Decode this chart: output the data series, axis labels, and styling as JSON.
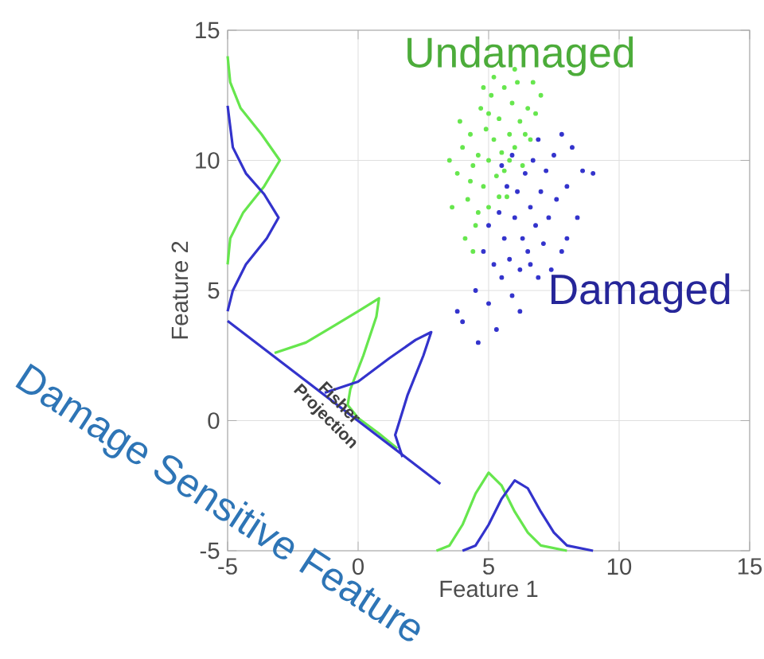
{
  "chart_data": {
    "type": "scatter",
    "xlabel": "Feature 1",
    "ylabel": "Feature 2",
    "xlim": [
      -5,
      15
    ],
    "ylim": [
      -5,
      15
    ],
    "xticks": [
      -5,
      0,
      5,
      10,
      15
    ],
    "yticks": [
      -5,
      0,
      5,
      10,
      15
    ],
    "grid": true,
    "annotations": [
      {
        "text": "Fisher Projection",
        "x": -1,
        "y": 0.4
      },
      "Damage Sensitive Feature"
    ],
    "series": [
      {
        "name": "Undamaged",
        "color": "#66e64d",
        "x": [
          3.8,
          4.0,
          4.2,
          4.3,
          4.4,
          4.5,
          4.6,
          4.7,
          4.8,
          4.9,
          5.0,
          5.0,
          5.1,
          5.2,
          5.3,
          5.4,
          5.5,
          5.6,
          5.7,
          5.8,
          5.9,
          6.0,
          6.1,
          6.2,
          6.3,
          6.5,
          6.6,
          6.8,
          7.0,
          4.1,
          3.6,
          4.4,
          5.2,
          4.6,
          5.4,
          6.0,
          3.9,
          4.8,
          6.4,
          5.6,
          3.5,
          4.3,
          5.0,
          5.8,
          6.7
        ],
        "values": [
          9.5,
          10.5,
          8.5,
          11.0,
          9.8,
          7.5,
          10.2,
          12.0,
          9.0,
          11.2,
          10.0,
          8.2,
          12.5,
          10.8,
          9.4,
          11.6,
          10.3,
          12.8,
          8.6,
          11.0,
          12.2,
          10.5,
          13.0,
          11.5,
          9.8,
          12.0,
          10.8,
          11.8,
          12.5,
          7.0,
          8.2,
          6.5,
          13.2,
          8.0,
          8.6,
          13.5,
          11.5,
          12.8,
          11.0,
          9.6,
          10.0,
          9.2,
          11.8,
          10.0,
          13.0
        ]
      },
      {
        "name": "Damaged",
        "color": "#3333cc",
        "x": [
          4.5,
          4.8,
          5.0,
          5.0,
          5.2,
          5.3,
          5.4,
          5.5,
          5.6,
          5.7,
          5.8,
          5.9,
          6.0,
          6.1,
          6.2,
          6.3,
          6.4,
          6.5,
          6.6,
          6.7,
          6.8,
          6.9,
          7.0,
          7.1,
          7.2,
          7.3,
          7.5,
          7.6,
          7.8,
          8.0,
          8.2,
          8.4,
          8.6,
          9.0,
          4.0,
          3.8,
          4.6,
          5.9,
          6.9,
          7.4,
          6.2,
          8.0,
          5.5,
          7.8,
          6.6
        ],
        "values": [
          5.0,
          6.5,
          4.5,
          7.5,
          6.0,
          3.5,
          8.0,
          5.5,
          7.0,
          9.0,
          6.2,
          4.8,
          7.8,
          8.8,
          5.8,
          7.0,
          9.5,
          6.5,
          8.2,
          10.0,
          7.5,
          5.5,
          8.8,
          6.8,
          9.6,
          7.8,
          10.2,
          8.5,
          6.5,
          9.0,
          10.5,
          7.8,
          9.6,
          9.5,
          3.8,
          4.2,
          3.0,
          10.2,
          10.8,
          5.8,
          4.2,
          7.0,
          9.8,
          11.0,
          6.0
        ]
      },
      {
        "type": "line",
        "color": "#66e64d",
        "x": [
          -5,
          -4.9,
          -4.5,
          -3.7,
          -3.0,
          -3.6,
          -4.4,
          -4.9,
          -5
        ],
        "values": [
          14,
          13,
          12,
          11,
          10,
          9,
          8,
          7,
          6
        ]
      },
      {
        "type": "line",
        "color": "#3333cc",
        "x": [
          -5,
          -4.8,
          -4.3,
          -3.6,
          -3.05,
          -3.5,
          -4.3,
          -4.8,
          -5
        ],
        "values": [
          12.1,
          10.5,
          9.5,
          8.7,
          7.8,
          7.0,
          6.0,
          5.0,
          4.2
        ]
      },
      {
        "type": "line",
        "color": "#66e64d",
        "x": [
          3,
          3.5,
          4,
          4.5,
          5,
          5.5,
          6,
          6.5,
          7,
          8
        ],
        "values": [
          -5,
          -4.8,
          -4,
          -2.8,
          -2.0,
          -2.5,
          -3.5,
          -4.3,
          -4.8,
          -5
        ]
      },
      {
        "type": "line",
        "color": "#3333cc",
        "x": [
          4,
          4.5,
          5,
          5.5,
          6,
          6.5,
          7,
          7.5,
          8,
          9
        ],
        "values": [
          -5,
          -4.8,
          -4,
          -3,
          -2.3,
          -2.6,
          -3.5,
          -4.3,
          -4.8,
          -5
        ]
      },
      {
        "type": "line",
        "color": "#66e64d",
        "x": [
          -3.2,
          -2.0,
          -1.0,
          0,
          0.8,
          0.7,
          0.2,
          -0.3,
          -0.4,
          0,
          0.8,
          1.5
        ],
        "values": [
          2.6,
          3.0,
          3.6,
          4.2,
          4.7,
          4.0,
          2.5,
          1.2,
          0.6,
          0.1,
          -0.5,
          -1.07
        ]
      },
      {
        "type": "line",
        "color": "#3333cc",
        "x": [
          -1.28,
          0,
          1.2,
          2.2,
          2.8,
          2.5,
          1.9,
          1.5,
          1.42,
          1.7
        ],
        "values": [
          1.07,
          1.5,
          2.4,
          3.1,
          3.4,
          2.5,
          1.0,
          -0.3,
          -0.55,
          -1.4
        ]
      },
      {
        "type": "line",
        "color": "#3333cc",
        "x": [
          -5,
          3.15
        ],
        "values": [
          3.83,
          -2.43
        ]
      }
    ]
  }
}
